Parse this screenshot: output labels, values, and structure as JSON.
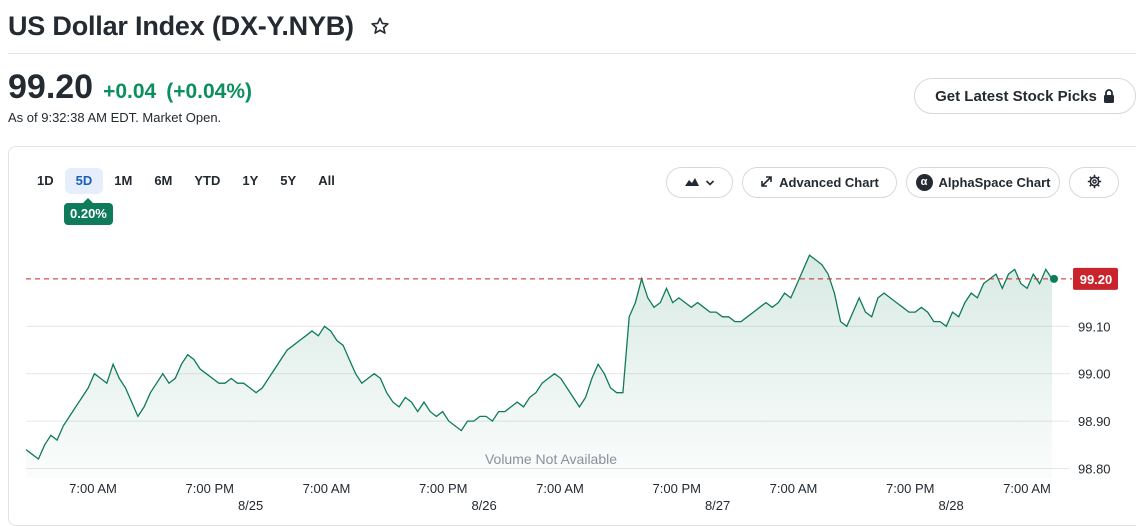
{
  "header": {
    "title": "US Dollar Index (DX-Y.NYB)",
    "price": "99.20",
    "change": "+0.04",
    "change_pct": "(+0.04%)",
    "as_of": "As of 9:32:38 AM EDT. Market Open.",
    "picks_button": "Get Latest Stock Picks"
  },
  "toolbar": {
    "ranges": [
      "1D",
      "5D",
      "1M",
      "6M",
      "YTD",
      "1Y",
      "5Y",
      "All"
    ],
    "active_range": "5D",
    "period_change": "0.20%",
    "advanced_chart": "Advanced Chart",
    "alphaspace_chart": "AlphaSpace Chart",
    "alpha_glyph": "α"
  },
  "colors": {
    "positive": "#0b8f5e",
    "line": "#0f7b5a",
    "current_badge": "#c9242b",
    "active_tab": "#1b5eb8"
  },
  "chart_data": {
    "type": "area",
    "current_value": 99.2,
    "current_label": "99.20",
    "ylim": [
      98.78,
      99.32
    ],
    "y_ticks": [
      98.8,
      98.9,
      99.0,
      99.1
    ],
    "y_tick_labels": [
      "98.80",
      "98.90",
      "99.00",
      "99.10"
    ],
    "x_ticks": [
      "7:00 AM",
      "7:00 PM",
      "7:00 AM",
      "7:00 PM",
      "7:00 AM",
      "7:00 PM",
      "7:00 AM",
      "7:00 PM",
      "7:00 AM"
    ],
    "date_labels": [
      "8/25",
      "8/26",
      "8/27",
      "8/28"
    ],
    "volume_note": "Volume Not Available",
    "grid": true,
    "series": [
      {
        "values": [
          98.84,
          98.83,
          98.82,
          98.85,
          98.87,
          98.86,
          98.89,
          98.91,
          98.93,
          98.95,
          98.97,
          99.0,
          98.99,
          98.98,
          99.02,
          98.99,
          98.97,
          98.94,
          98.91,
          98.93,
          98.96,
          98.98,
          99.0,
          98.98,
          98.99,
          99.02,
          99.04,
          99.03,
          99.01,
          99.0,
          98.99,
          98.98,
          98.98,
          98.99,
          98.98,
          98.98,
          98.97,
          98.96,
          98.97,
          98.99,
          99.01,
          99.03,
          99.05,
          99.06,
          99.07,
          99.08,
          99.09,
          99.08,
          99.1,
          99.09,
          99.07,
          99.06,
          99.03,
          99.0,
          98.98,
          98.99,
          99.0,
          98.99,
          98.96,
          98.94,
          98.93,
          98.95,
          98.94,
          98.92,
          98.94,
          98.92,
          98.91,
          98.92,
          98.9,
          98.89,
          98.88,
          98.9,
          98.9,
          98.91,
          98.91,
          98.9,
          98.92,
          98.92,
          98.93,
          98.94,
          98.93,
          98.95,
          98.96,
          98.98,
          98.99,
          99.0,
          98.99,
          98.97,
          98.95,
          98.93,
          98.95,
          98.99,
          99.02,
          99.0,
          98.97,
          98.96,
          98.96,
          99.12,
          99.15,
          99.2,
          99.16,
          99.14,
          99.15,
          99.18,
          99.15,
          99.16,
          99.15,
          99.14,
          99.15,
          99.14,
          99.13,
          99.13,
          99.12,
          99.12,
          99.11,
          99.11,
          99.12,
          99.13,
          99.14,
          99.15,
          99.14,
          99.15,
          99.17,
          99.16,
          99.19,
          99.22,
          99.25,
          99.24,
          99.23,
          99.21,
          99.17,
          99.11,
          99.1,
          99.13,
          99.16,
          99.13,
          99.12,
          99.16,
          99.17,
          99.16,
          99.15,
          99.14,
          99.13,
          99.13,
          99.14,
          99.13,
          99.11,
          99.11,
          99.1,
          99.13,
          99.12,
          99.15,
          99.17,
          99.16,
          99.19,
          99.2,
          99.21,
          99.18,
          99.21,
          99.22,
          99.19,
          99.18,
          99.21,
          99.19,
          99.22,
          99.2
        ]
      }
    ]
  }
}
